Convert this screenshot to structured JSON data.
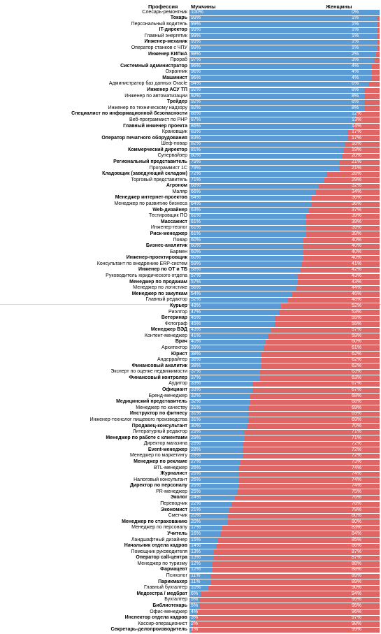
{
  "colors": {
    "men": "#5b9bd5",
    "women": "#e06666"
  },
  "chart_data": {
    "type": "bar",
    "stacked": true,
    "orientation": "horizontal",
    "headers": {
      "category": "Профессия",
      "men": "Мужчины",
      "women": "Женщины"
    },
    "series_names": [
      "Мужчины",
      "Женщины"
    ],
    "rows": [
      {
        "label": "Слесарь-ремонтник",
        "men": 100,
        "women": 0
      },
      {
        "label": "Токарь",
        "men": 99,
        "women": 1
      },
      {
        "label": "Персональный водитель",
        "men": 99,
        "women": 1
      },
      {
        "label": "IT-директор",
        "men": 99,
        "women": 1
      },
      {
        "label": "Главный энергетик",
        "men": 99,
        "women": 1
      },
      {
        "label": "Инженер-механик",
        "men": 99,
        "women": 1
      },
      {
        "label": "Оператор станков с ЧПУ",
        "men": 99,
        "women": 1
      },
      {
        "label": "Инженер КИПиА",
        "men": 98,
        "women": 2
      },
      {
        "label": "Прораб",
        "men": 97,
        "women": 3
      },
      {
        "label": "Системный администратор",
        "men": 96,
        "women": 4
      },
      {
        "label": "Охранник",
        "men": 96,
        "women": 4
      },
      {
        "label": "Машинист",
        "men": 96,
        "women": 4
      },
      {
        "label": "Администратор баз данных Oracle",
        "men": 94,
        "women": 6
      },
      {
        "label": "Инженер АСУ ТП",
        "men": 92,
        "women": 8
      },
      {
        "label": "Инженер по автоматизации",
        "men": 92,
        "women": 8
      },
      {
        "label": "Трейдер",
        "men": 92,
        "women": 8
      },
      {
        "label": "Инженер по техническому надзору",
        "men": 92,
        "women": 8
      },
      {
        "label": "Специалист по информационной безопасности",
        "men": 88,
        "women": 12
      },
      {
        "label": "Веб-программист по PHP",
        "men": 87,
        "women": 13
      },
      {
        "label": "Главный инженер проекта",
        "men": 86,
        "women": 14
      },
      {
        "label": "Крановщик",
        "men": 83,
        "women": 17
      },
      {
        "label": "Оператор печатного оборудования",
        "men": 83,
        "women": 17
      },
      {
        "label": "Шеф-повар",
        "men": 82,
        "women": 18
      },
      {
        "label": "Коммерческий директор",
        "men": 81,
        "women": 19
      },
      {
        "label": "Супервайзер",
        "men": 80,
        "women": 20
      },
      {
        "label": "Региональный представитель",
        "men": 79,
        "women": 21
      },
      {
        "label": "Программист 1С",
        "men": 79,
        "women": 21
      },
      {
        "label": "Кладовщик (заведующий складом)",
        "men": 72,
        "women": 28
      },
      {
        "label": "Торговый представитель",
        "men": 71,
        "women": 29
      },
      {
        "label": "Агроном",
        "men": 68,
        "women": 32
      },
      {
        "label": "Маляр",
        "men": 66,
        "women": 34
      },
      {
        "label": "Менеджер интернет-проектов",
        "men": 64,
        "women": 36
      },
      {
        "label": "Менеджер по развитию бизнеса",
        "men": 64,
        "women": 36
      },
      {
        "label": "Web-дизайнер",
        "men": 63,
        "women": 37
      },
      {
        "label": "Тестировщик ПО",
        "men": 61,
        "women": 39
      },
      {
        "label": "Массажист",
        "men": 61,
        "women": 39
      },
      {
        "label": "Инженер-геолог",
        "men": 61,
        "women": 39
      },
      {
        "label": "Риск-менеджер",
        "men": 61,
        "women": 39
      },
      {
        "label": "Повар",
        "men": 60,
        "women": 40
      },
      {
        "label": "Бизнес-аналитик",
        "men": 60,
        "women": 40
      },
      {
        "label": "Бармен",
        "men": 60,
        "women": 40
      },
      {
        "label": "Инженер-проектировщик",
        "men": 60,
        "women": 40
      },
      {
        "label": "Консультант по внедрению ERP-систем",
        "men": 59,
        "women": 41
      },
      {
        "label": "Инженер по ОТ и ТБ",
        "men": 58,
        "women": 42
      },
      {
        "label": "Руководитель юридического отдела",
        "men": 57,
        "women": 43
      },
      {
        "label": "Менеджер по продажам",
        "men": 57,
        "women": 43
      },
      {
        "label": "Менеджер по логистике",
        "men": 56,
        "women": 44
      },
      {
        "label": "Менеджер по закупкам",
        "men": 54,
        "women": 46
      },
      {
        "label": "Главный редактор",
        "men": 52,
        "women": 48
      },
      {
        "label": "Курьер",
        "men": 48,
        "women": 52
      },
      {
        "label": "Риэлтор",
        "men": 47,
        "women": 53
      },
      {
        "label": "Ветеринар",
        "men": 45,
        "women": 55
      },
      {
        "label": "Фотограф",
        "men": 45,
        "women": 55
      },
      {
        "label": "Менеджер ВЭД",
        "men": 43,
        "women": 57
      },
      {
        "label": "Контент-менеджер",
        "men": 41,
        "women": 59
      },
      {
        "label": "Врач",
        "men": 40,
        "women": 60
      },
      {
        "label": "Архитектор",
        "men": 39,
        "women": 61
      },
      {
        "label": "Юрист",
        "men": 38,
        "women": 62
      },
      {
        "label": "Андеррайтер",
        "men": 38,
        "women": 62
      },
      {
        "label": "Финансовый аналитик",
        "men": 38,
        "women": 62
      },
      {
        "label": "Эксперт по оценке недвижимости",
        "men": 37,
        "women": 63
      },
      {
        "label": "Финансовый контролер",
        "men": 37,
        "women": 63
      },
      {
        "label": "Аудитор",
        "men": 33,
        "women": 67
      },
      {
        "label": "Официант",
        "men": 33,
        "women": 67
      },
      {
        "label": "Бренд-менеджер",
        "men": 32,
        "women": 68
      },
      {
        "label": "Медицинский представитель",
        "men": 32,
        "women": 68
      },
      {
        "label": "Менеджер по качеству",
        "men": 31,
        "women": 69
      },
      {
        "label": "Инструктор по фитнесу",
        "men": 31,
        "women": 69
      },
      {
        "label": "Инженер-технолог пищевого производства",
        "men": 31,
        "women": 69
      },
      {
        "label": "Продавец-консультант",
        "men": 30,
        "women": 70
      },
      {
        "label": "Литературный редактор",
        "men": 29,
        "women": 71
      },
      {
        "label": "Менеджер по работе с клиентами",
        "men": 29,
        "women": 71
      },
      {
        "label": "Директор магазина",
        "men": 28,
        "women": 72
      },
      {
        "label": "Event-менеджер",
        "men": 28,
        "women": 72
      },
      {
        "label": "Менеджер по маркетингу",
        "men": 28,
        "women": 72
      },
      {
        "label": "Менеджер по рекламе",
        "men": 27,
        "women": 73
      },
      {
        "label": "BTL-менеджер",
        "men": 26,
        "women": 74
      },
      {
        "label": "Журналист",
        "men": 26,
        "women": 74
      },
      {
        "label": "Налоговый консультант",
        "men": 26,
        "women": 74
      },
      {
        "label": "Директор по персоналу",
        "men": 26,
        "women": 74
      },
      {
        "label": "PR-менеджер",
        "men": 25,
        "women": 75
      },
      {
        "label": "Эколог",
        "men": 24,
        "women": 76
      },
      {
        "label": "Переводчик",
        "men": 22,
        "women": 78
      },
      {
        "label": "Экономист",
        "men": 21,
        "women": 79
      },
      {
        "label": "Сметчик",
        "men": 20,
        "women": 80
      },
      {
        "label": "Менеджер по страхованию",
        "men": 20,
        "women": 80
      },
      {
        "label": "Менеджер по персоналу",
        "men": 17,
        "women": 83
      },
      {
        "label": "Учитель",
        "men": 16,
        "women": 84
      },
      {
        "label": "Ландшафтный дизайнер",
        "men": 15,
        "women": 85
      },
      {
        "label": "Начальник отдела кадров",
        "men": 14,
        "women": 86
      },
      {
        "label": "Помощник руководителя",
        "men": 13,
        "women": 87
      },
      {
        "label": "Оператор call-центра",
        "men": 13,
        "women": 87
      },
      {
        "label": "Менеджер по туризму",
        "men": 12,
        "women": 88
      },
      {
        "label": "Фармацевт",
        "men": 12,
        "women": 88
      },
      {
        "label": "Психолог",
        "men": 11,
        "women": 89
      },
      {
        "label": "Парикмахер",
        "men": 11,
        "women": 89
      },
      {
        "label": "Главный бухгалтер",
        "men": 10,
        "women": 90
      },
      {
        "label": "Медсестра / медбрат",
        "men": 6,
        "women": 94
      },
      {
        "label": "Бухгалтер",
        "men": 5,
        "women": 95
      },
      {
        "label": "Библиотекарь",
        "men": 5,
        "women": 95
      },
      {
        "label": "Офис-менеджер",
        "men": 4,
        "women": 96
      },
      {
        "label": "Инспектор отдела кадров",
        "men": 3,
        "women": 97
      },
      {
        "label": "Кассир-операционист",
        "men": 2,
        "women": 98
      },
      {
        "label": "Секретарь-делопроизводитель",
        "men": 1,
        "women": 99
      }
    ]
  }
}
